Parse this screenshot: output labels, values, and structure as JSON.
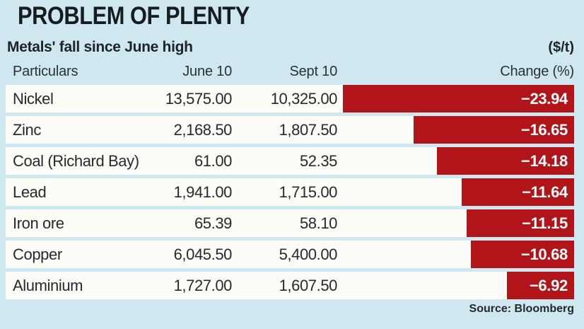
{
  "title": "PROBLEM OF PLENTY",
  "subtitle": "Metals' fall since June high",
  "unit_label": "($/t)",
  "source": "Source: Bloomberg",
  "colors": {
    "background": "#cfe8ef",
    "row_background": "#fdfdf8",
    "bar": "#b1151a",
    "text": "#232a2e",
    "bar_text": "#ffffff"
  },
  "chart_data": {
    "type": "bar",
    "title": "PROBLEM OF PLENTY",
    "subtitle": "Metals' fall since June high",
    "unit": "$/t",
    "legend_position": "none",
    "grid": false,
    "orientation": "horizontal",
    "bar_scale_max": 23.94,
    "columns": [
      "Particulars",
      "June 10",
      "Sept 10",
      "Change (%)"
    ],
    "rows": [
      {
        "particulars": "Nickel",
        "june10": "13,575.00",
        "sept10": "10,325.00",
        "change_pct": -23.94,
        "change_label": "−23.94"
      },
      {
        "particulars": "Zinc",
        "june10": "2,168.50",
        "sept10": "1,807.50",
        "change_pct": -16.65,
        "change_label": "−16.65"
      },
      {
        "particulars": "Coal (Richard Bay)",
        "june10": "61.00",
        "sept10": "52.35",
        "change_pct": -14.18,
        "change_label": "−14.18"
      },
      {
        "particulars": "Lead",
        "june10": "1,941.00",
        "sept10": "1,715.00",
        "change_pct": -11.64,
        "change_label": "−11.64"
      },
      {
        "particulars": "Iron ore",
        "june10": "65.39",
        "sept10": "58.10",
        "change_pct": -11.15,
        "change_label": "−11.15"
      },
      {
        "particulars": "Copper",
        "june10": "6,045.50",
        "sept10": "5,400.00",
        "change_pct": -10.68,
        "change_label": "−10.68"
      },
      {
        "particulars": "Aluminium",
        "june10": "1,727.00",
        "sept10": "1,607.50",
        "change_pct": -6.92,
        "change_label": "−6.92"
      }
    ],
    "source": "Source: Bloomberg"
  }
}
